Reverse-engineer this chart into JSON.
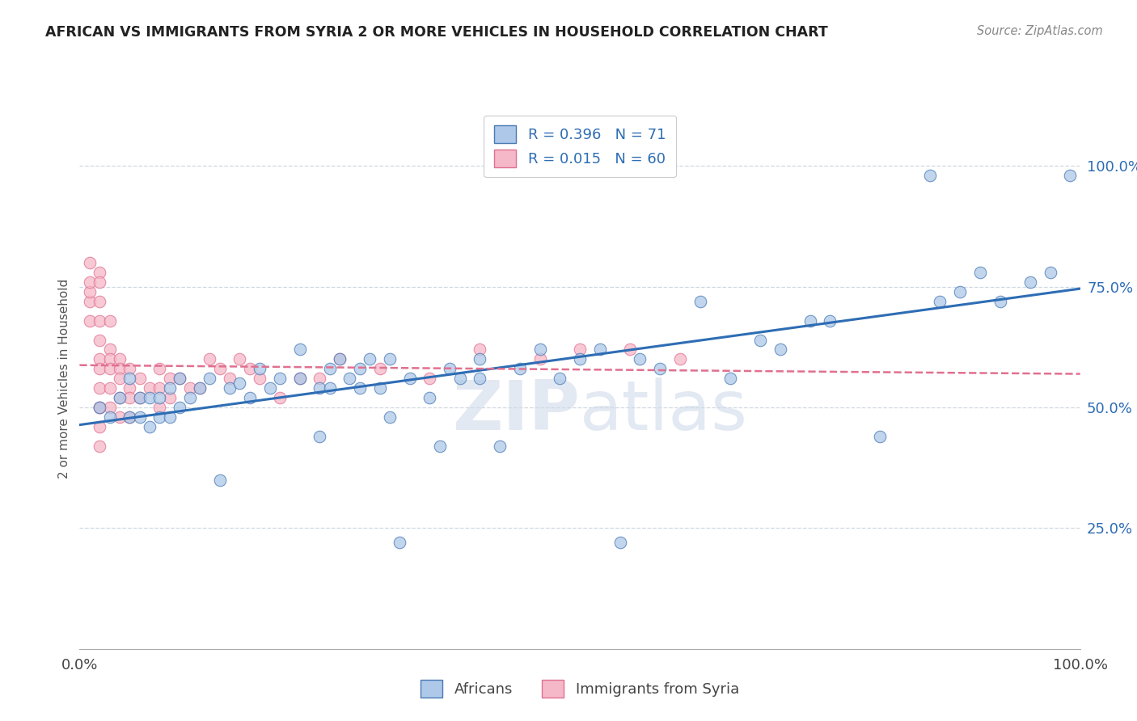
{
  "title": "AFRICAN VS IMMIGRANTS FROM SYRIA 2 OR MORE VEHICLES IN HOUSEHOLD CORRELATION CHART",
  "source": "Source: ZipAtlas.com",
  "ylabel": "2 or more Vehicles in Household",
  "y_ticks_labels": [
    "25.0%",
    "50.0%",
    "75.0%",
    "100.0%"
  ],
  "y_tick_vals": [
    0.25,
    0.5,
    0.75,
    1.0
  ],
  "legend_label1": "Africans",
  "legend_label2": "Immigrants from Syria",
  "r1": 0.396,
  "n1": 71,
  "r2": 0.015,
  "n2": 60,
  "color_african_fill": "#adc8e8",
  "color_african_edge": "#4a7ab5",
  "color_syria_fill": "#f5b8c8",
  "color_syria_edge": "#e07090",
  "color_african_line": "#2e6db4",
  "color_syria_line": "#e07090",
  "color_grid": "#d0d8e0",
  "watermark_color": "#cdd8e8",
  "background_color": "#ffffff",
  "xlim": [
    0.0,
    1.0
  ],
  "ylim": [
    0.0,
    1.12
  ],
  "african_x": [
    0.02,
    0.03,
    0.04,
    0.05,
    0.05,
    0.06,
    0.06,
    0.07,
    0.07,
    0.08,
    0.08,
    0.09,
    0.09,
    0.1,
    0.1,
    0.11,
    0.12,
    0.13,
    0.14,
    0.15,
    0.17,
    0.18,
    0.19,
    0.2,
    0.22,
    0.22,
    0.24,
    0.24,
    0.25,
    0.25,
    0.26,
    0.27,
    0.28,
    0.28,
    0.29,
    0.3,
    0.31,
    0.32,
    0.33,
    0.35,
    0.36,
    0.37,
    0.38,
    0.4,
    0.42,
    0.44,
    0.46,
    0.48,
    0.5,
    0.52,
    0.54,
    0.56,
    0.58,
    0.62,
    0.65,
    0.68,
    0.7,
    0.73,
    0.75,
    0.8,
    0.85,
    0.86,
    0.88,
    0.9,
    0.92,
    0.95,
    0.97,
    0.99,
    0.16,
    0.31,
    0.4
  ],
  "african_y": [
    0.5,
    0.48,
    0.52,
    0.56,
    0.48,
    0.52,
    0.48,
    0.52,
    0.46,
    0.52,
    0.48,
    0.54,
    0.48,
    0.5,
    0.56,
    0.52,
    0.54,
    0.56,
    0.35,
    0.54,
    0.52,
    0.58,
    0.54,
    0.56,
    0.62,
    0.56,
    0.54,
    0.44,
    0.58,
    0.54,
    0.6,
    0.56,
    0.58,
    0.54,
    0.6,
    0.54,
    0.48,
    0.22,
    0.56,
    0.52,
    0.42,
    0.58,
    0.56,
    0.6,
    0.42,
    0.58,
    0.62,
    0.56,
    0.6,
    0.62,
    0.22,
    0.6,
    0.58,
    0.72,
    0.56,
    0.64,
    0.62,
    0.68,
    0.68,
    0.44,
    0.98,
    0.72,
    0.74,
    0.78,
    0.72,
    0.76,
    0.78,
    0.98,
    0.55,
    0.6,
    0.56
  ],
  "syria_x": [
    0.01,
    0.01,
    0.01,
    0.01,
    0.01,
    0.02,
    0.02,
    0.02,
    0.02,
    0.02,
    0.02,
    0.02,
    0.02,
    0.02,
    0.02,
    0.02,
    0.02,
    0.03,
    0.03,
    0.03,
    0.03,
    0.03,
    0.03,
    0.04,
    0.04,
    0.04,
    0.04,
    0.04,
    0.05,
    0.05,
    0.05,
    0.05,
    0.06,
    0.06,
    0.07,
    0.08,
    0.08,
    0.08,
    0.09,
    0.09,
    0.1,
    0.11,
    0.12,
    0.13,
    0.14,
    0.15,
    0.16,
    0.17,
    0.18,
    0.2,
    0.22,
    0.24,
    0.26,
    0.3,
    0.35,
    0.4,
    0.46,
    0.5,
    0.55,
    0.6
  ],
  "syria_y": [
    0.72,
    0.8,
    0.68,
    0.74,
    0.76,
    0.78,
    0.72,
    0.76,
    0.68,
    0.64,
    0.6,
    0.58,
    0.54,
    0.5,
    0.5,
    0.46,
    0.42,
    0.68,
    0.62,
    0.6,
    0.58,
    0.54,
    0.5,
    0.6,
    0.58,
    0.56,
    0.52,
    0.48,
    0.58,
    0.54,
    0.52,
    0.48,
    0.56,
    0.52,
    0.54,
    0.58,
    0.54,
    0.5,
    0.56,
    0.52,
    0.56,
    0.54,
    0.54,
    0.6,
    0.58,
    0.56,
    0.6,
    0.58,
    0.56,
    0.52,
    0.56,
    0.56,
    0.6,
    0.58,
    0.56,
    0.62,
    0.6,
    0.62,
    0.62,
    0.6
  ]
}
